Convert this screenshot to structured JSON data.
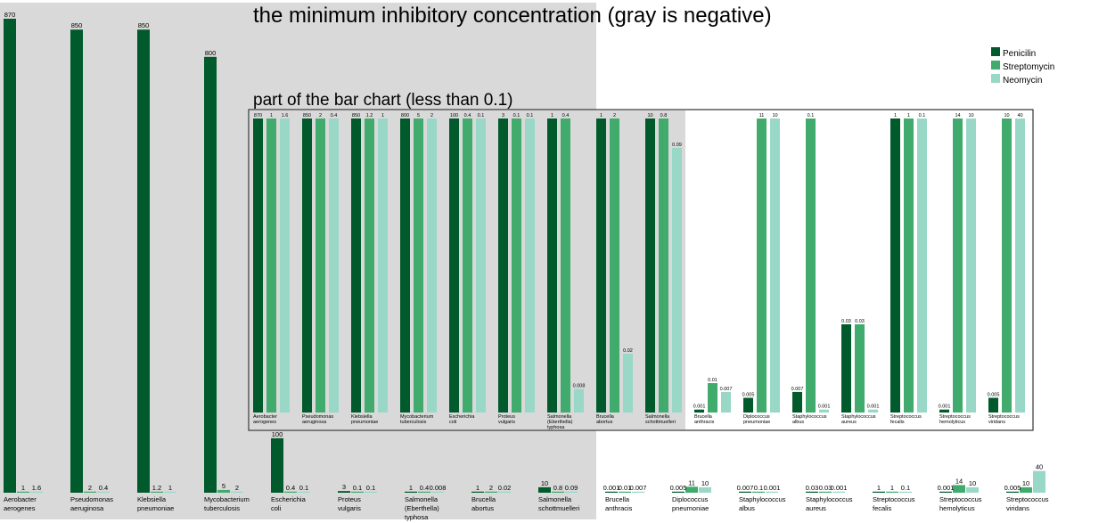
{
  "title": "the minimum inhibitory concentration (gray is negative)",
  "inset_title": "part of the bar chart (less than 0.1)",
  "legend": [
    "Penicilin",
    "Streptomycin",
    "Neomycin"
  ],
  "colors": {
    "penicilin": "#005a2b",
    "streptomycin": "#41ab6d",
    "neomycin": "#99d8c7",
    "negative_background": "#d9d9d9",
    "inset_border": "#333333"
  },
  "chart_data": [
    {
      "type": "bar",
      "title": "the minimum inhibitory concentration (gray is negative)",
      "categories": [
        [
          "Aerobacter",
          "aerogenes"
        ],
        [
          "Pseudomonas",
          "aeruginosa"
        ],
        [
          "Klebsiella",
          "pneumoniae"
        ],
        [
          "Mycobacterium",
          "tuberculosis"
        ],
        [
          "Escherichia",
          "coli"
        ],
        [
          "Proteus",
          "vulgaris"
        ],
        [
          "Salmonella",
          "(Eberthella)",
          "typhosa"
        ],
        [
          "Brucella",
          "abortus"
        ],
        [
          "Salmonella",
          "schottmuelleri"
        ],
        [
          "Brucella",
          "anthracis"
        ],
        [
          "Diplococcus",
          "pneumoniae"
        ],
        [
          "Staphylococcus",
          "albus"
        ],
        [
          "Staphylococcus",
          "aureus"
        ],
        [
          "Streptococcus",
          "fecalis"
        ],
        [
          "Streptococcus",
          "hemolyticus"
        ],
        [
          "Streptococcus",
          "viridans"
        ]
      ],
      "gram_negative": [
        true,
        true,
        true,
        true,
        true,
        true,
        true,
        true,
        true,
        false,
        false,
        false,
        false,
        false,
        false,
        false
      ],
      "series": [
        {
          "name": "Penicilin",
          "values": [
            870,
            850,
            850,
            800,
            100,
            3,
            1,
            1,
            10,
            0.001,
            0.005,
            0.007,
            0.03,
            1,
            0.001,
            0.005
          ]
        },
        {
          "name": "Streptomycin",
          "values": [
            1,
            2,
            1.2,
            5,
            0.4,
            0.1,
            0.4,
            2,
            0.8,
            0.01,
            11,
            0.1,
            0.03,
            1,
            14,
            10
          ]
        },
        {
          "name": "Neomycin",
          "values": [
            1.6,
            0.4,
            1,
            2,
            0.1,
            0.1,
            0.008,
            0.02,
            0.09,
            0.007,
            10,
            0.001,
            0.001,
            0.1,
            10,
            40
          ]
        }
      ],
      "ylim": [
        0,
        870
      ],
      "legend_position": "top-right"
    },
    {
      "type": "bar",
      "title": "part of the bar chart (less than 0.1)",
      "ylim": [
        0,
        0.1
      ],
      "clipped_at": 0.1,
      "note": "same categories and series as the main chart; values above 0.1 are clipped at the top"
    }
  ]
}
